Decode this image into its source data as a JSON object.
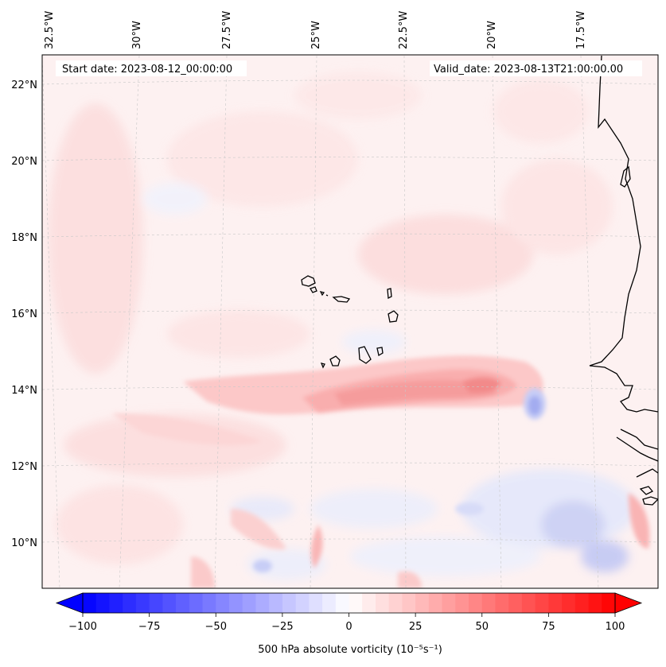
{
  "header": {
    "start_date": "Start date: 2023-08-12_00:00:00",
    "valid_date": "Valid_date: 2023-08-13T21:00:00.00"
  },
  "axes": {
    "longitude_labels": [
      "32.5°W",
      "30°W",
      "27.5°W",
      "25°W",
      "22.5°W",
      "20°W",
      "17.5°W"
    ],
    "latitude_labels": [
      "22°N",
      "20°N",
      "18°N",
      "16°N",
      "14°N",
      "12°N",
      "10°N"
    ]
  },
  "colorbar": {
    "ticks": [
      "−100",
      "−75",
      "−50",
      "−25",
      "0",
      "25",
      "50",
      "75",
      "100"
    ],
    "tick_values": [
      -100,
      -75,
      -50,
      -25,
      0,
      25,
      50,
      75,
      100
    ],
    "label": "500 hPa absolute vorticity (10⁻⁵s⁻¹)",
    "vmin": -100,
    "vmax": 100,
    "colors": {
      "negative": "#0000ff",
      "zero": "#ffffff",
      "positive": "#ff0000"
    }
  }
}
